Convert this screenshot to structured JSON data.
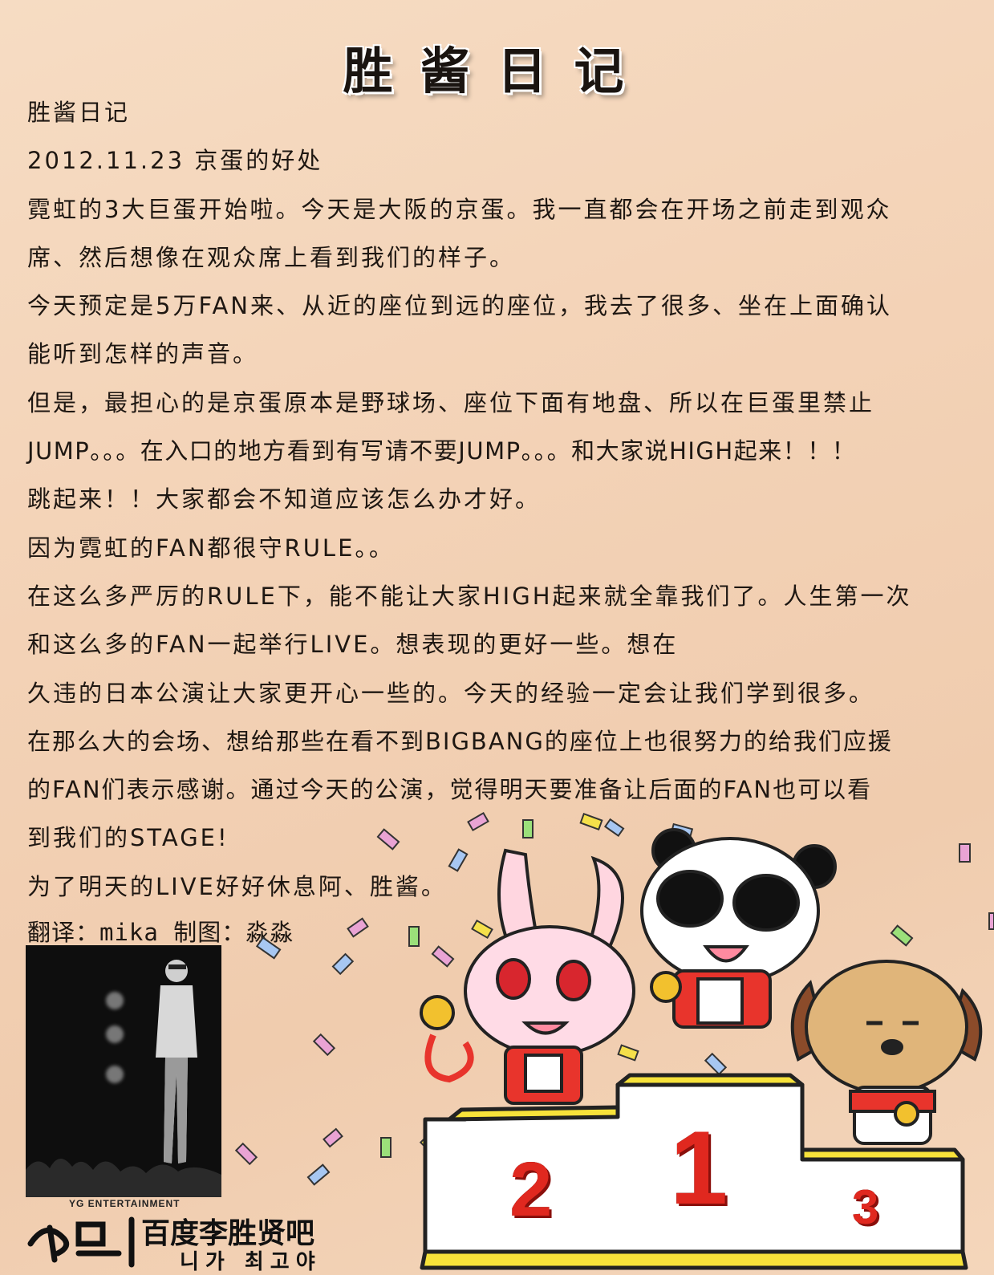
{
  "header": {
    "title": "胜酱日记"
  },
  "diary": {
    "lines": [
      "胜酱日记",
      "2012.11.23 京蛋的好处",
      "霓虹的3大巨蛋开始啦。今天是大阪的京蛋。我一直都会在开场之前走到观众",
      "席、然后想像在观众席上看到我们的样子。",
      "今天预定是5万FAN来、从近的座位到远的座位，我去了很多、坐在上面确认",
      "能听到怎样的声音。",
      "但是，最担心的是京蛋原本是野球场、座位下面有地盘、所以在巨蛋里禁止",
      "JUMP。。。在入口的地方看到有写请不要JUMP。。。和大家说HIGH起来！！！",
      "跳起来！！大家都会不知道应该怎么办才好。",
      "因为霓虹的FAN都很守RULE。。",
      "在这么多严厉的RULE下，能不能让大家HIGH起来就全靠我们了。人生第一次",
      "和这么多的FAN一起举行LIVE。想表现的更好一些。想在",
      "久违的日本公演让大家更开心一些的。今天的经验一定会让我们学到很多。",
      "在那么大的会场、想给那些在看不到BIGBANG的座位上也很努力的给我们应援",
      "的FAN们表示感谢。通过今天的公演，觉得明天要准备让后面的FAN也可以看",
      "到我们的STAGE!",
      "为了明天的LIVE好好休息阿、胜酱。"
    ],
    "credit": "翻译：mika  制图：淼淼"
  },
  "photo": {
    "caption": "YG ENTERTAINMENT"
  },
  "logo": {
    "main": "百度李胜贤吧",
    "korean": "니가 최고야"
  },
  "podium": {
    "first": "1",
    "second": "2",
    "third": "3"
  },
  "colors": {
    "background": "#f3d2b6",
    "podium_yellow": "#f7e23a",
    "numeral_red": "#e0281f"
  },
  "icons": [
    "rabbit-mascot-icon",
    "panda-mascot-icon",
    "dog-mascot-icon",
    "medal-icon",
    "confetti-icon"
  ]
}
